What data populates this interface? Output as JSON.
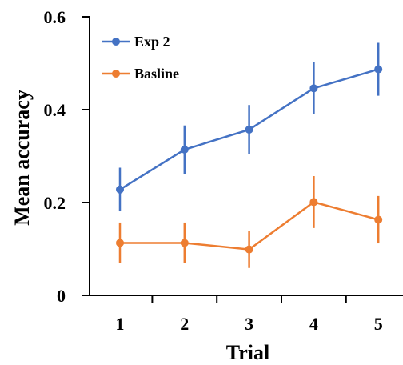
{
  "chart_data": {
    "type": "line",
    "title": "",
    "xlabel": "Trial",
    "ylabel": "Mean accuracy",
    "x": [
      1,
      2,
      3,
      4,
      5
    ],
    "xlim": [
      0.5,
      5.5
    ],
    "ylim": [
      0,
      0.6
    ],
    "xticks": [
      "1",
      "2",
      "3",
      "4",
      "5"
    ],
    "yticks": [
      "0",
      "0.2",
      "0.4",
      "0.6"
    ],
    "grid": false,
    "legend_position": "top-left",
    "series": [
      {
        "name": "Exp 2",
        "color": "#4472C4",
        "values": [
          0.228,
          0.314,
          0.357,
          0.446,
          0.487
        ],
        "error": [
          0.047,
          0.052,
          0.053,
          0.056,
          0.057
        ]
      },
      {
        "name": "Basline",
        "color": "#ED7D31",
        "values": [
          0.113,
          0.113,
          0.099,
          0.201,
          0.163
        ],
        "error": [
          0.044,
          0.044,
          0.04,
          0.056,
          0.051
        ]
      }
    ]
  }
}
